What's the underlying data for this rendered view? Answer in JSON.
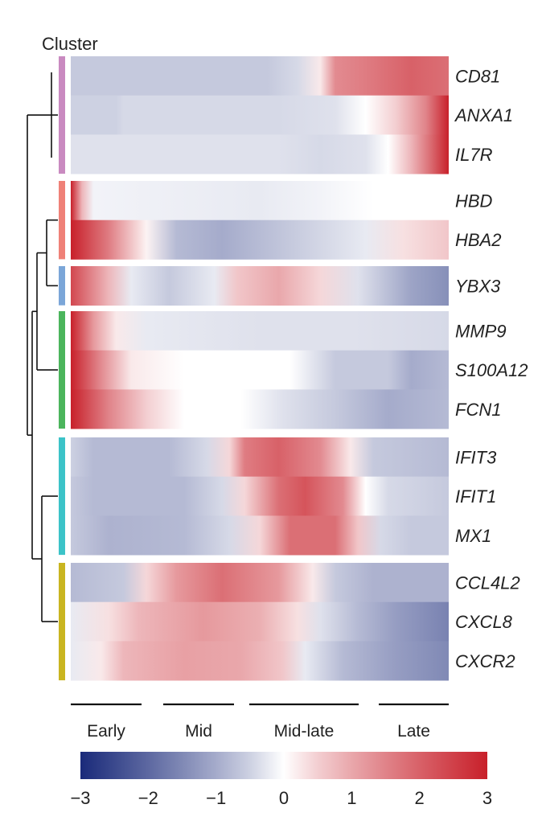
{
  "chart_data": {
    "type": "heatmap",
    "title": "",
    "xlabel": "",
    "ylabel": "",
    "cluster_label": "Cluster",
    "stages": [
      "Early",
      "Mid",
      "Mid-late",
      "Late"
    ],
    "colorbar": {
      "min": -3,
      "max": 3,
      "tick_labels": [
        "−3",
        "−2",
        "−1",
        "0",
        "1",
        "2",
        "3"
      ],
      "low_color": "#1a2a7a",
      "mid_color": "#ffffff",
      "high_color": "#c8202a"
    },
    "clusters": [
      {
        "color": "#c98ac0",
        "genes": [
          "CD81",
          "ANXA1",
          "IL7R"
        ]
      },
      {
        "color": "#ef8178",
        "genes": [
          "HBD",
          "HBA2"
        ]
      },
      {
        "color": "#7ba6d8",
        "genes": [
          "YBX3"
        ]
      },
      {
        "color": "#4bb55c",
        "genes": [
          "MMP9",
          "S100A12",
          "FCN1"
        ]
      },
      {
        "color": "#3cc3c8",
        "genes": [
          "IFIT3",
          "IFIT1",
          "MX1"
        ]
      },
      {
        "color": "#c9b520",
        "genes": [
          "CCL4L2",
          "CXCL8",
          "CXCR2"
        ]
      }
    ],
    "genes": [
      {
        "name": "CD81",
        "profile": [
          [
            0,
            -0.6
          ],
          [
            0.52,
            -0.6
          ],
          [
            0.6,
            -0.4
          ],
          [
            0.66,
            0.2
          ],
          [
            0.7,
            1.4
          ],
          [
            0.78,
            1.6
          ],
          [
            0.9,
            2.0
          ],
          [
            1,
            1.8
          ]
        ]
      },
      {
        "name": "ANXA1",
        "profile": [
          [
            0,
            -0.5
          ],
          [
            0.12,
            -0.5
          ],
          [
            0.14,
            -0.4
          ],
          [
            0.55,
            -0.4
          ],
          [
            0.7,
            -0.3
          ],
          [
            0.78,
            0.0
          ],
          [
            0.86,
            0.5
          ],
          [
            0.94,
            1.5
          ],
          [
            1,
            3.0
          ]
        ]
      },
      {
        "name": "IL7R",
        "profile": [
          [
            0,
            -0.3
          ],
          [
            0.55,
            -0.3
          ],
          [
            0.66,
            -0.4
          ],
          [
            0.78,
            -0.3
          ],
          [
            0.84,
            0.0
          ],
          [
            0.9,
            0.8
          ],
          [
            0.95,
            1.8
          ],
          [
            1,
            3.0
          ]
        ]
      },
      {
        "name": "HBD",
        "profile": [
          [
            0,
            3.0
          ],
          [
            0.03,
            0.8
          ],
          [
            0.06,
            -0.1
          ],
          [
            0.5,
            -0.2
          ],
          [
            0.66,
            -0.1
          ],
          [
            0.8,
            0.0
          ],
          [
            1,
            0.0
          ]
        ]
      },
      {
        "name": "HBA2",
        "profile": [
          [
            0,
            3.0
          ],
          [
            0.1,
            1.6
          ],
          [
            0.2,
            0.1
          ],
          [
            0.28,
            -0.8
          ],
          [
            0.4,
            -1.0
          ],
          [
            0.58,
            -0.6
          ],
          [
            0.78,
            -0.2
          ],
          [
            0.88,
            0.3
          ],
          [
            1,
            0.6
          ]
        ]
      },
      {
        "name": "YBX3",
        "profile": [
          [
            0,
            2.4
          ],
          [
            0.1,
            0.8
          ],
          [
            0.16,
            -0.2
          ],
          [
            0.26,
            -0.6
          ],
          [
            0.38,
            -0.2
          ],
          [
            0.44,
            0.6
          ],
          [
            0.55,
            1.0
          ],
          [
            0.66,
            0.4
          ],
          [
            0.76,
            -0.3
          ],
          [
            0.9,
            -1.1
          ],
          [
            1,
            -1.4
          ]
        ]
      },
      {
        "name": "MMP9",
        "profile": [
          [
            0,
            3.0
          ],
          [
            0.06,
            1.2
          ],
          [
            0.12,
            0.2
          ],
          [
            0.2,
            -0.2
          ],
          [
            0.5,
            -0.3
          ],
          [
            0.75,
            -0.3
          ],
          [
            1,
            -0.4
          ]
        ]
      },
      {
        "name": "S100A12",
        "profile": [
          [
            0,
            3.0
          ],
          [
            0.08,
            1.4
          ],
          [
            0.16,
            0.2
          ],
          [
            0.3,
            0.0
          ],
          [
            0.58,
            0.0
          ],
          [
            0.7,
            -0.6
          ],
          [
            0.84,
            -0.6
          ],
          [
            0.9,
            -1.0
          ],
          [
            1,
            -0.8
          ]
        ]
      },
      {
        "name": "FCN1",
        "profile": [
          [
            0,
            3.0
          ],
          [
            0.1,
            1.5
          ],
          [
            0.2,
            0.5
          ],
          [
            0.3,
            0.0
          ],
          [
            0.45,
            0.0
          ],
          [
            0.56,
            -0.3
          ],
          [
            0.7,
            -0.6
          ],
          [
            0.84,
            -1.0
          ],
          [
            1,
            -0.8
          ]
        ]
      },
      {
        "name": "IFIT3",
        "profile": [
          [
            0,
            -0.5
          ],
          [
            0.06,
            -0.8
          ],
          [
            0.26,
            -0.8
          ],
          [
            0.36,
            -0.4
          ],
          [
            0.42,
            0.4
          ],
          [
            0.46,
            1.6
          ],
          [
            0.55,
            2.0
          ],
          [
            0.66,
            1.4
          ],
          [
            0.74,
            0.2
          ],
          [
            0.8,
            -0.6
          ],
          [
            1,
            -0.8
          ]
        ]
      },
      {
        "name": "IFIT1",
        "profile": [
          [
            0,
            -0.6
          ],
          [
            0.06,
            -0.8
          ],
          [
            0.3,
            -0.8
          ],
          [
            0.4,
            -0.4
          ],
          [
            0.46,
            0.4
          ],
          [
            0.55,
            1.8
          ],
          [
            0.62,
            2.2
          ],
          [
            0.72,
            1.4
          ],
          [
            0.78,
            0.0
          ],
          [
            0.84,
            -0.4
          ],
          [
            1,
            -0.6
          ]
        ]
      },
      {
        "name": "MX1",
        "profile": [
          [
            0,
            -0.6
          ],
          [
            0.1,
            -0.9
          ],
          [
            0.3,
            -0.8
          ],
          [
            0.42,
            -0.4
          ],
          [
            0.5,
            0.4
          ],
          [
            0.58,
            1.8
          ],
          [
            0.7,
            1.8
          ],
          [
            0.76,
            0.6
          ],
          [
            0.82,
            -0.4
          ],
          [
            0.9,
            -0.6
          ],
          [
            1,
            -0.6
          ]
        ]
      },
      {
        "name": "CCL4L2",
        "profile": [
          [
            0,
            -0.8
          ],
          [
            0.14,
            -0.6
          ],
          [
            0.2,
            0.4
          ],
          [
            0.28,
            1.2
          ],
          [
            0.4,
            1.8
          ],
          [
            0.55,
            1.2
          ],
          [
            0.64,
            0.2
          ],
          [
            0.7,
            -0.6
          ],
          [
            0.8,
            -0.9
          ],
          [
            1,
            -0.9
          ]
        ]
      },
      {
        "name": "CXCL8",
        "profile": [
          [
            0,
            -0.2
          ],
          [
            0.1,
            0.3
          ],
          [
            0.18,
            0.8
          ],
          [
            0.35,
            1.2
          ],
          [
            0.5,
            0.9
          ],
          [
            0.6,
            0.3
          ],
          [
            0.66,
            -0.3
          ],
          [
            0.76,
            -0.8
          ],
          [
            0.86,
            -1.2
          ],
          [
            1,
            -1.6
          ]
        ]
      },
      {
        "name": "CXCR2",
        "profile": [
          [
            0,
            -0.2
          ],
          [
            0.08,
            0.2
          ],
          [
            0.14,
            0.8
          ],
          [
            0.3,
            1.1
          ],
          [
            0.45,
            1.0
          ],
          [
            0.56,
            0.6
          ],
          [
            0.62,
            -0.2
          ],
          [
            0.72,
            -0.8
          ],
          [
            0.86,
            -1.2
          ],
          [
            1,
            -1.5
          ]
        ]
      }
    ]
  }
}
